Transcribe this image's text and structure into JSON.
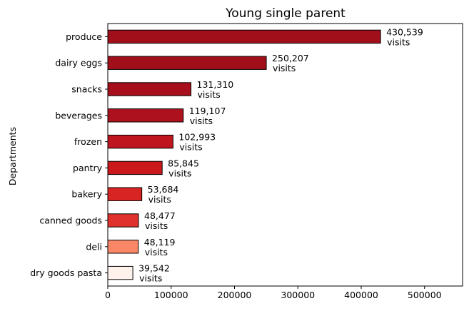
{
  "chart_data": {
    "type": "bar",
    "orientation": "horizontal",
    "title": "Young single parent",
    "xlabel": "",
    "ylabel": "Departments",
    "xlim": [
      0,
      560000
    ],
    "xticks": [
      0,
      100000,
      200000,
      300000,
      400000,
      500000
    ],
    "grid": false,
    "categories": [
      "produce",
      "dairy eggs",
      "snacks",
      "beverages",
      "frozen",
      "pantry",
      "bakery",
      "canned goods",
      "deli",
      "dry goods pasta"
    ],
    "values": [
      430539,
      250207,
      131310,
      119107,
      102993,
      85845,
      53684,
      48477,
      48119,
      39542
    ],
    "data_labels": [
      [
        "430,539",
        "visits"
      ],
      [
        "250,207",
        "visits"
      ],
      [
        "131,310",
        "visits"
      ],
      [
        "119,107",
        "visits"
      ],
      [
        "102,993",
        "visits"
      ],
      [
        "85,845",
        "visits"
      ],
      [
        "53,684",
        "visits"
      ],
      [
        "48,477",
        "visits"
      ],
      [
        "48,119",
        "visits"
      ],
      [
        "39,542",
        "visits"
      ]
    ],
    "colors": [
      "#a10f1b",
      "#a10f1b",
      "#a70f1c",
      "#ad111d",
      "#be151f",
      "#cb181d",
      "#d82422",
      "#e0312c",
      "#fc8767",
      "#fff2ec"
    ],
    "edge_color": "#000000"
  }
}
